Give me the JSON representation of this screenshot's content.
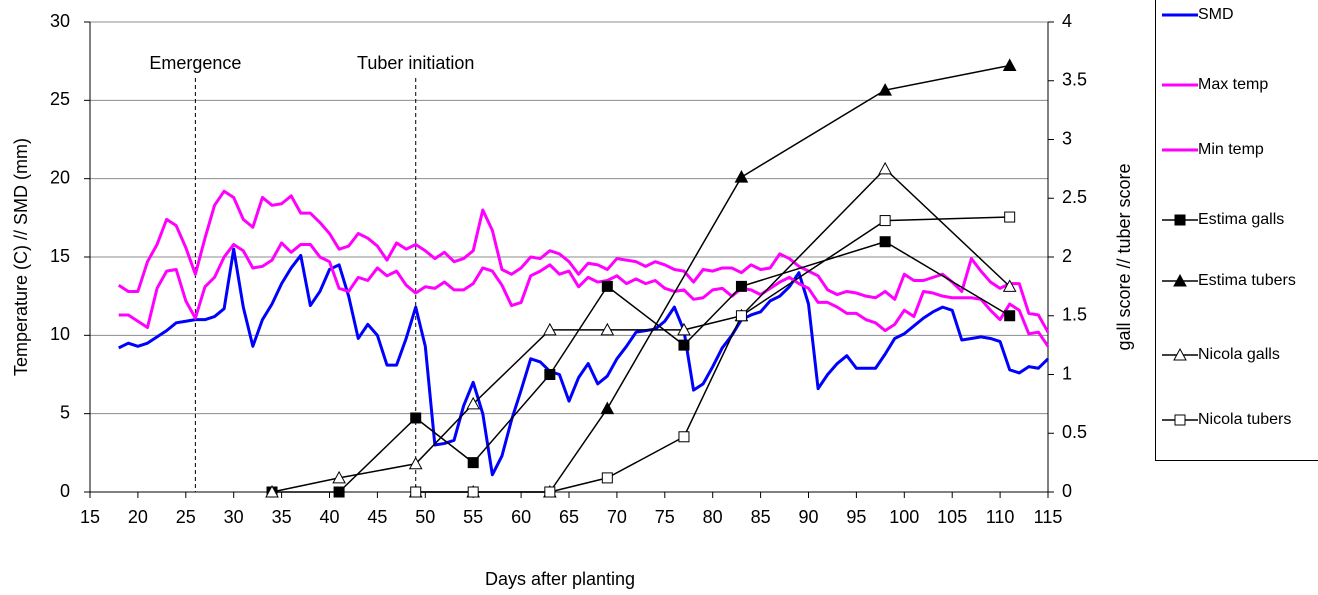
{
  "chart_data": {
    "type": "line",
    "x_label": "Days after planting",
    "y_label": "Temperature (C) // SMD (mm)",
    "y2_label": "gall score // tuber score",
    "xlim": [
      15,
      115
    ],
    "xticks": [
      15,
      20,
      25,
      30,
      35,
      40,
      45,
      50,
      55,
      60,
      65,
      70,
      75,
      80,
      85,
      90,
      95,
      100,
      105,
      110,
      115
    ],
    "ylim": [
      0,
      30
    ],
    "yticks": [
      0,
      5,
      10,
      15,
      20,
      25,
      30
    ],
    "y2lim": [
      0,
      4
    ],
    "y2ticks": [
      0,
      0.5,
      1,
      1.5,
      2,
      2.5,
      3,
      3.5,
      4
    ],
    "grid": true,
    "legend": "right",
    "vlines": [
      {
        "x": 26,
        "label": "Emergence"
      },
      {
        "x": 49,
        "label": "Tuber initiation"
      }
    ],
    "series": [
      {
        "name": "SMD",
        "color": "#0000ff",
        "marker": "none",
        "x": [
          18,
          19,
          20,
          21,
          22,
          23,
          24,
          25,
          26,
          27,
          28,
          29,
          30,
          31,
          32,
          33,
          34,
          35,
          36,
          37,
          38,
          39,
          40,
          41,
          42,
          43,
          44,
          45,
          46,
          47,
          48,
          49,
          50,
          51,
          52,
          53,
          54,
          55,
          56,
          57,
          58,
          59,
          60,
          61,
          62,
          63,
          64,
          65,
          66,
          67,
          68,
          69,
          70,
          71,
          72,
          73,
          74,
          75,
          76,
          77,
          78,
          79,
          80,
          81,
          82,
          83,
          84,
          85,
          86,
          87,
          88,
          89,
          90,
          91,
          92,
          93,
          94,
          95,
          96,
          97,
          98,
          99,
          100,
          101,
          102,
          103,
          104,
          105,
          106,
          107,
          108,
          109,
          110,
          111,
          112,
          113,
          114,
          115
        ],
        "values": [
          9.2,
          9.5,
          9.3,
          9.5,
          9.9,
          10.3,
          10.8,
          10.9,
          11.0,
          11.0,
          11.2,
          11.7,
          15.5,
          11.8,
          9.3,
          11.0,
          12.0,
          13.3,
          14.3,
          15.1,
          11.9,
          12.8,
          14.2,
          14.5,
          12.5,
          9.8,
          10.7,
          10.0,
          8.1,
          8.1,
          9.8,
          11.8,
          9.3,
          3.0,
          3.1,
          3.3,
          5.5,
          7.0,
          5.0,
          1.1,
          2.3,
          4.6,
          6.5,
          8.5,
          8.3,
          7.7,
          7.5,
          5.8,
          7.3,
          8.2,
          6.9,
          7.4,
          8.5,
          9.3,
          10.2,
          10.3,
          10.4,
          10.9,
          11.8,
          10.3,
          6.5,
          6.9,
          8.0,
          9.2,
          10.0,
          11.0,
          11.3,
          11.5,
          12.2,
          12.5,
          13.1,
          14.0,
          12.0,
          6.6,
          7.5,
          8.2,
          8.7,
          7.9,
          7.9,
          7.9,
          8.8,
          9.8,
          10.1,
          10.6,
          11.1,
          11.5,
          11.8,
          11.6,
          9.7,
          9.8,
          9.9,
          9.8,
          9.6,
          7.8,
          7.6,
          8.0,
          7.9,
          8.5
        ]
      },
      {
        "name": "Max temp",
        "color": "#ff00ff",
        "marker": "none",
        "x": [
          18,
          19,
          20,
          21,
          22,
          23,
          24,
          25,
          26,
          27,
          28,
          29,
          30,
          31,
          32,
          33,
          34,
          35,
          36,
          37,
          38,
          39,
          40,
          41,
          42,
          43,
          44,
          45,
          46,
          47,
          48,
          49,
          50,
          51,
          52,
          53,
          54,
          55,
          56,
          57,
          58,
          59,
          60,
          61,
          62,
          63,
          64,
          65,
          66,
          67,
          68,
          69,
          70,
          71,
          72,
          73,
          74,
          75,
          76,
          77,
          78,
          79,
          80,
          81,
          82,
          83,
          84,
          85,
          86,
          87,
          88,
          89,
          90,
          91,
          92,
          93,
          94,
          95,
          96,
          97,
          98,
          99,
          100,
          101,
          102,
          103,
          104,
          105,
          106,
          107,
          108,
          109,
          110,
          111,
          112,
          113,
          114,
          115
        ],
        "values": [
          13.2,
          12.8,
          12.8,
          14.7,
          15.8,
          17.4,
          17.0,
          15.6,
          13.9,
          16.2,
          18.3,
          19.2,
          18.8,
          17.4,
          16.9,
          18.8,
          18.3,
          18.4,
          18.9,
          17.8,
          17.8,
          17.2,
          16.5,
          15.5,
          15.7,
          16.5,
          16.2,
          15.7,
          14.8,
          15.9,
          15.5,
          15.8,
          15.4,
          14.9,
          15.3,
          14.7,
          14.9,
          15.4,
          18.0,
          16.7,
          14.2,
          13.9,
          14.3,
          15.0,
          14.9,
          15.4,
          15.2,
          14.7,
          13.9,
          14.6,
          14.5,
          14.2,
          14.9,
          14.8,
          14.7,
          14.4,
          14.7,
          14.5,
          14.2,
          14.1,
          13.4,
          14.2,
          14.1,
          14.3,
          14.3,
          14.0,
          14.5,
          14.2,
          14.3,
          15.2,
          14.9,
          14.4,
          14.1,
          13.8,
          12.9,
          12.6,
          12.8,
          12.7,
          12.5,
          12.4,
          12.8,
          12.3,
          13.9,
          13.5,
          13.5,
          13.7,
          13.9,
          13.4,
          12.8,
          14.9,
          14.1,
          13.4,
          13.0,
          13.3,
          13.3,
          11.4,
          11.3,
          10.2
        ]
      },
      {
        "name": "Min temp",
        "color": "#ff00ff",
        "marker": "none",
        "x": [
          18,
          19,
          20,
          21,
          22,
          23,
          24,
          25,
          26,
          27,
          28,
          29,
          30,
          31,
          32,
          33,
          34,
          35,
          36,
          37,
          38,
          39,
          40,
          41,
          42,
          43,
          44,
          45,
          46,
          47,
          48,
          49,
          50,
          51,
          52,
          53,
          54,
          55,
          56,
          57,
          58,
          59,
          60,
          61,
          62,
          63,
          64,
          65,
          66,
          67,
          68,
          69,
          70,
          71,
          72,
          73,
          74,
          75,
          76,
          77,
          78,
          79,
          80,
          81,
          82,
          83,
          84,
          85,
          86,
          87,
          88,
          89,
          90,
          91,
          92,
          93,
          94,
          95,
          96,
          97,
          98,
          99,
          100,
          101,
          102,
          103,
          104,
          105,
          106,
          107,
          108,
          109,
          110,
          111,
          112,
          113,
          114,
          115
        ],
        "values": [
          11.3,
          11.3,
          10.9,
          10.5,
          13.0,
          14.1,
          14.2,
          12.2,
          11.1,
          13.1,
          13.7,
          15.0,
          15.8,
          15.4,
          14.3,
          14.4,
          14.8,
          15.9,
          15.3,
          15.8,
          15.8,
          15.0,
          14.7,
          13.0,
          12.8,
          13.7,
          13.5,
          14.3,
          13.8,
          14.1,
          13.2,
          12.7,
          13.1,
          13.0,
          13.4,
          12.9,
          12.9,
          13.3,
          14.3,
          14.1,
          13.2,
          11.9,
          12.1,
          13.8,
          14.1,
          14.5,
          13.9,
          14.1,
          13.1,
          13.7,
          13.4,
          13.5,
          13.8,
          13.3,
          13.6,
          13.3,
          13.5,
          13.0,
          12.8,
          12.9,
          12.3,
          12.4,
          12.9,
          13.0,
          12.5,
          13.0,
          12.9,
          12.6,
          13.0,
          13.4,
          13.7,
          13.3,
          13.0,
          12.1,
          12.1,
          11.8,
          11.4,
          11.4,
          11.0,
          10.8,
          10.3,
          10.7,
          11.6,
          11.2,
          12.8,
          12.7,
          12.5,
          12.4,
          12.4,
          12.4,
          12.3,
          11.6,
          11.0,
          12.0,
          11.6,
          10.1,
          10.2,
          9.3
        ]
      },
      {
        "name": "Estima galls",
        "color": "#000000",
        "marker": "filled-square",
        "axis": "y2",
        "x": [
          34,
          41,
          49,
          55,
          63,
          69,
          77,
          83,
          98,
          111
        ],
        "values": [
          0,
          0,
          0.63,
          0.25,
          1.0,
          1.75,
          1.25,
          1.75,
          2.13,
          1.5
        ]
      },
      {
        "name": "Estima tubers",
        "color": "#000000",
        "marker": "filled-triangle",
        "axis": "y2",
        "x": [
          49,
          55,
          63,
          69,
          83,
          98,
          111
        ],
        "values": [
          0,
          0,
          0,
          0.71,
          2.68,
          3.42,
          3.63
        ]
      },
      {
        "name": "Nicola galls",
        "color": "#000000",
        "marker": "open-triangle",
        "axis": "y2",
        "x": [
          34,
          41,
          49,
          55,
          63,
          69,
          77,
          83,
          98,
          111
        ],
        "values": [
          0,
          0.12,
          0.24,
          0.75,
          1.38,
          1.38,
          1.38,
          1.5,
          2.75,
          1.75
        ]
      },
      {
        "name": "Nicola tubers",
        "color": "#000000",
        "marker": "open-square",
        "axis": "y2",
        "x": [
          49,
          55,
          63,
          69,
          77,
          83,
          98,
          111
        ],
        "values": [
          0,
          0,
          0,
          0.12,
          0.47,
          1.5,
          2.31,
          2.34
        ]
      }
    ]
  }
}
